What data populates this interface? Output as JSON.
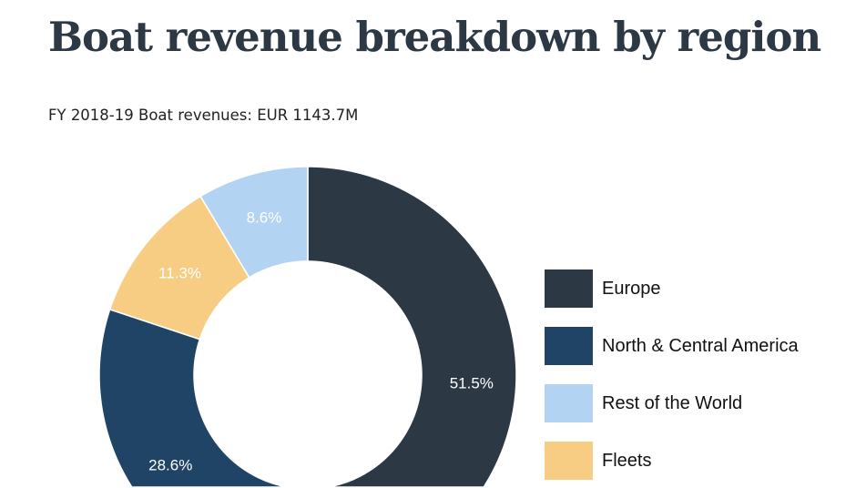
{
  "header": {
    "title": "Boat revenue breakdown by region",
    "subtitle": "FY 2018-19 Boat revenues: EUR 1143.7M"
  },
  "chart_data": {
    "type": "pie",
    "donut": true,
    "title": "Boat revenue breakdown by region",
    "subtitle": "FY 2018-19 Boat revenues: EUR 1143.7M",
    "unit": "%",
    "slices": [
      {
        "name": "Europe",
        "value": 51.5,
        "label": "51.5%",
        "color": "#2d3845"
      },
      {
        "name": "North & Central America",
        "value": 28.6,
        "label": "28.6%",
        "color": "#1f4466"
      },
      {
        "name": "Fleets",
        "value": 11.3,
        "label": "11.3%",
        "color": "#f6cd83"
      },
      {
        "name": "Rest of the World",
        "value": 8.6,
        "label": "8.6%",
        "color": "#b2d3f1"
      }
    ],
    "legend": {
      "placement": "right",
      "entries": [
        {
          "name": "Europe",
          "color": "#2d3845"
        },
        {
          "name": "North & Central America",
          "color": "#1f4466"
        },
        {
          "name": "Rest of the World",
          "color": "#b2d3f1"
        },
        {
          "name": "Fleets",
          "color": "#f6cd83"
        }
      ]
    }
  }
}
